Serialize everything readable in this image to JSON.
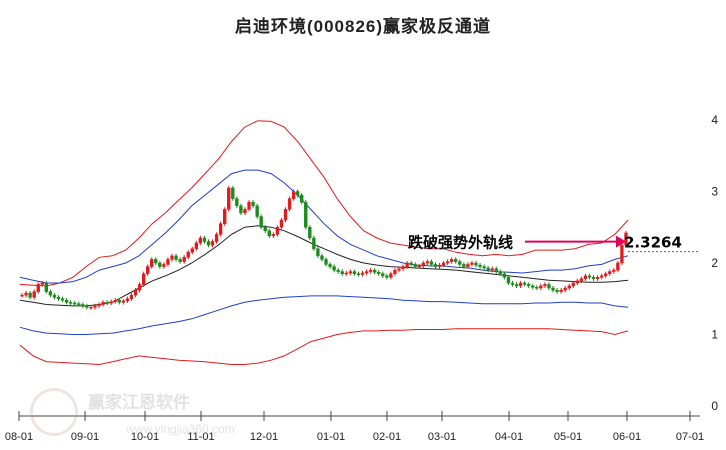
{
  "header": {
    "title": "启迪环境(000826)赢家极反通道"
  },
  "watermark": {
    "name": "赢家江恩软件",
    "url": "www.yingjia360.com",
    "seal_text": "赢家"
  },
  "chart_data": {
    "type": "line",
    "title": "启迪环境(000826)赢家极反通道",
    "x_tick_labels": [
      "08-01",
      "09-01",
      "10-01",
      "11-01",
      "12-01",
      "01-01",
      "02-01",
      "03-01",
      "04-01",
      "05-01",
      "06-01",
      "07-01"
    ],
    "y_tick_labels": [
      "0",
      "1",
      "2",
      "3",
      "4"
    ],
    "ylim": [
      0,
      4.1
    ],
    "grid": false,
    "annotation": {
      "text": "跌破强势外轨线",
      "value": "2.3264",
      "target_value": 2.3264
    },
    "series": [
      {
        "color": "#e31a1c",
        "values": [
          1.7,
          1.69,
          1.68,
          1.72,
          1.8,
          1.95,
          2.08,
          2.1,
          2.18,
          2.35,
          2.55,
          2.7,
          2.88,
          3.05,
          3.25,
          3.45,
          3.7,
          3.9,
          3.99,
          3.98,
          3.9,
          3.7,
          3.45,
          3.2,
          2.9,
          2.65,
          2.45,
          2.35,
          2.28,
          2.25,
          2.22,
          2.2,
          2.2,
          2.15,
          2.12,
          2.1,
          2.12,
          2.1,
          2.12,
          2.18,
          2.18,
          2.18,
          2.2,
          2.26,
          2.28,
          2.4,
          2.6
        ]
      },
      {
        "color": "#1f3fcc",
        "values": [
          1.8,
          1.76,
          1.72,
          1.72,
          1.74,
          1.8,
          1.9,
          1.95,
          2.0,
          2.1,
          2.26,
          2.42,
          2.6,
          2.8,
          2.95,
          3.1,
          3.25,
          3.3,
          3.3,
          3.25,
          3.12,
          2.95,
          2.75,
          2.55,
          2.38,
          2.26,
          2.18,
          2.1,
          2.05,
          2.0,
          1.97,
          1.96,
          1.96,
          1.94,
          1.93,
          1.9,
          1.88,
          1.87,
          1.86,
          1.88,
          1.9,
          1.9,
          1.92,
          1.96,
          1.98,
          2.05,
          2.1
        ]
      },
      {
        "color": "#222222",
        "values": [
          1.48,
          1.45,
          1.42,
          1.41,
          1.4,
          1.4,
          1.42,
          1.45,
          1.55,
          1.65,
          1.75,
          1.82,
          1.9,
          2.0,
          2.12,
          2.25,
          2.4,
          2.5,
          2.52,
          2.5,
          2.45,
          2.37,
          2.28,
          2.2,
          2.12,
          2.05,
          2.0,
          1.97,
          1.95,
          1.94,
          1.93,
          1.92,
          1.91,
          1.9,
          1.88,
          1.86,
          1.84,
          1.82,
          1.8,
          1.78,
          1.76,
          1.75,
          1.74,
          1.73,
          1.73,
          1.74,
          1.76
        ]
      },
      {
        "color": "#1f3fcc",
        "values": [
          1.1,
          1.05,
          1.02,
          1.01,
          1.0,
          1.0,
          1.01,
          1.02,
          1.05,
          1.08,
          1.12,
          1.15,
          1.18,
          1.22,
          1.28,
          1.34,
          1.4,
          1.45,
          1.48,
          1.5,
          1.52,
          1.53,
          1.54,
          1.54,
          1.54,
          1.53,
          1.52,
          1.51,
          1.5,
          1.48,
          1.47,
          1.46,
          1.46,
          1.45,
          1.44,
          1.43,
          1.43,
          1.43,
          1.43,
          1.44,
          1.44,
          1.45,
          1.45,
          1.44,
          1.44,
          1.4,
          1.38
        ]
      },
      {
        "color": "#e31a1c",
        "values": [
          0.85,
          0.7,
          0.62,
          0.61,
          0.6,
          0.59,
          0.58,
          0.62,
          0.66,
          0.7,
          0.68,
          0.66,
          0.64,
          0.63,
          0.62,
          0.6,
          0.58,
          0.58,
          0.6,
          0.64,
          0.7,
          0.8,
          0.9,
          0.95,
          1.0,
          1.03,
          1.05,
          1.05,
          1.06,
          1.06,
          1.07,
          1.07,
          1.07,
          1.08,
          1.08,
          1.08,
          1.08,
          1.08,
          1.08,
          1.08,
          1.08,
          1.07,
          1.06,
          1.05,
          1.04,
          1.0,
          1.05
        ]
      }
    ],
    "price_close": [
      1.55,
      1.58,
      1.52,
      1.6,
      1.7,
      1.72,
      1.6,
      1.55,
      1.52,
      1.5,
      1.48,
      1.45,
      1.44,
      1.43,
      1.42,
      1.4,
      1.38,
      1.38,
      1.4,
      1.42,
      1.45,
      1.44,
      1.46,
      1.48,
      1.45,
      1.47,
      1.5,
      1.55,
      1.62,
      1.7,
      1.85,
      1.95,
      2.05,
      2.0,
      1.95,
      1.98,
      2.05,
      2.1,
      2.05,
      2.02,
      2.08,
      2.15,
      2.2,
      2.28,
      2.35,
      2.3,
      2.25,
      2.3,
      2.4,
      2.55,
      2.75,
      3.05,
      2.9,
      2.8,
      2.7,
      2.75,
      2.85,
      2.8,
      2.65,
      2.5,
      2.45,
      2.38,
      2.4,
      2.5,
      2.6,
      2.75,
      2.9,
      3.0,
      2.95,
      2.85,
      2.5,
      2.35,
      2.2,
      2.1,
      2.05,
      1.98,
      1.95,
      1.9,
      1.88,
      1.85,
      1.86,
      1.88,
      1.85,
      1.84,
      1.86,
      1.88,
      1.9,
      1.87,
      1.85,
      1.82,
      1.8,
      1.85,
      1.9,
      1.92,
      1.95,
      2.0,
      1.98,
      1.95,
      1.96,
      2.0,
      2.02,
      1.98,
      1.95,
      1.97,
      2.0,
      2.02,
      2.05,
      2.02,
      1.98,
      1.95,
      1.98,
      2.0,
      1.97,
      1.95,
      1.93,
      1.9,
      1.92,
      1.88,
      1.85,
      1.8,
      1.72,
      1.7,
      1.68,
      1.72,
      1.7,
      1.68,
      1.66,
      1.65,
      1.68,
      1.7,
      1.65,
      1.62,
      1.6,
      1.62,
      1.65,
      1.68,
      1.72,
      1.75,
      1.78,
      1.82,
      1.8,
      1.78,
      1.8,
      1.82,
      1.85,
      1.88,
      1.9,
      2.0,
      2.25,
      2.42
    ]
  }
}
